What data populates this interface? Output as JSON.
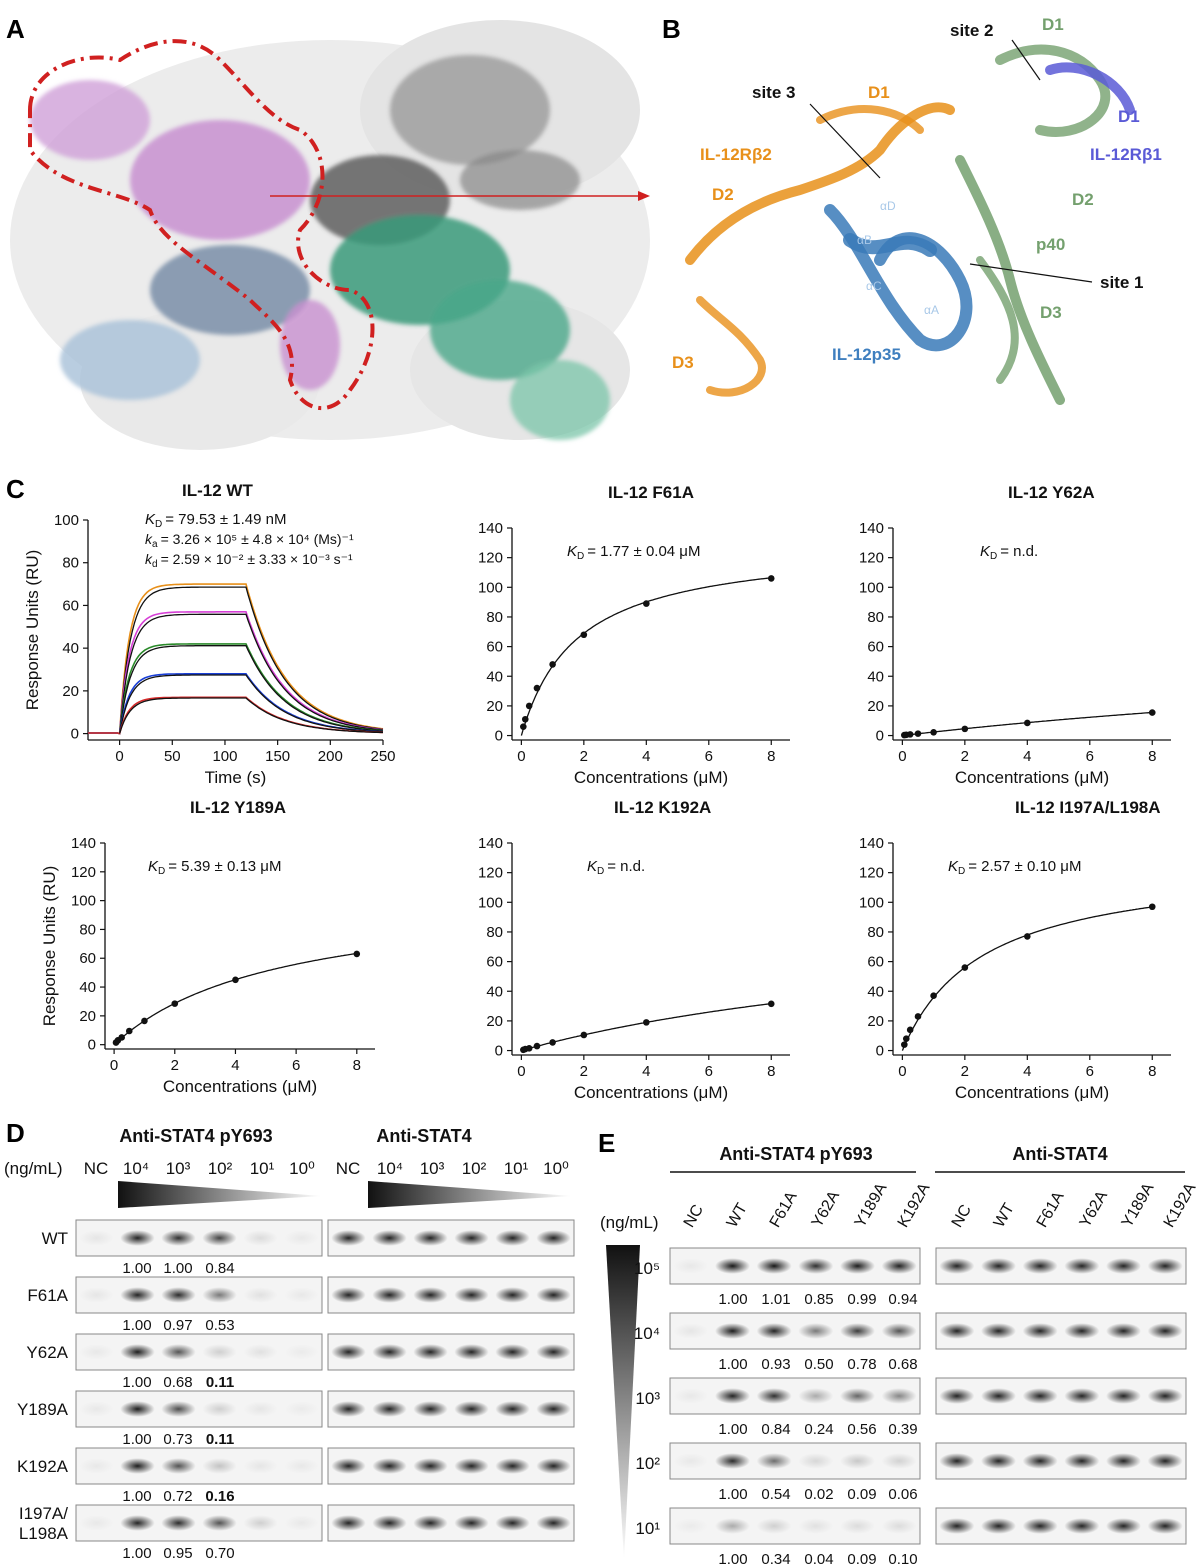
{
  "panel_labels": [
    "A",
    "B",
    "C",
    "D",
    "E"
  ],
  "panelB": {
    "labels": [
      {
        "text": "site 2",
        "c": "#111"
      },
      {
        "text": "D1",
        "c": "#74a06e"
      },
      {
        "text": "site 3",
        "c": "#111"
      },
      {
        "text": "D1",
        "c": "#e8901a"
      },
      {
        "text": "D1",
        "c": "#5a5ad6"
      },
      {
        "text": "IL-12Rβ2",
        "c": "#e8901a"
      },
      {
        "text": "IL-12Rβ1",
        "c": "#5a5ad6"
      },
      {
        "text": "D2",
        "c": "#e8901a"
      },
      {
        "text": "D2",
        "c": "#74a06e"
      },
      {
        "text": "p40",
        "c": "#74a06e"
      },
      {
        "text": "site 1",
        "c": "#111"
      },
      {
        "text": "D3",
        "c": "#74a06e"
      },
      {
        "text": "IL-12p35",
        "c": "#3f7fbf"
      },
      {
        "text": "D3",
        "c": "#e8901a"
      }
    ],
    "helix_labels": [
      "αD",
      "αB",
      "αC",
      "αA"
    ]
  },
  "panelC": {
    "y_axis_label": "Response Units (RU)",
    "x_axis_label_time": "Time (s)",
    "x_axis_label_conc": "Concentrations (μM)",
    "charts": [
      {
        "title": "IL-12 WT",
        "kd": "= 79.53 ± 1.49 nM",
        "ka_line": "= 3.26 × 10⁵ ± 4.8 × 10⁴ (Ms)⁻¹",
        "kdis_line": "= 2.59 × 10⁻² ± 3.33 × 10⁻³ s⁻¹"
      },
      {
        "title": "IL-12 F61A",
        "kd": "= 1.77 ± 0.04 μM"
      },
      {
        "title": "IL-12 Y62A",
        "kd": "= n.d."
      },
      {
        "title": "IL-12 Y189A",
        "kd": "= 5.39 ± 0.13 μM"
      },
      {
        "title": "IL-12 K192A",
        "kd": "= n.d."
      },
      {
        "title": "IL-12 I197A/L198A",
        "kd": "= 2.57 ± 0.10 μM"
      }
    ]
  },
  "chart_data": [
    {
      "type": "line",
      "title": "IL-12 WT",
      "xlabel": "Time (s)",
      "ylabel": "Response Units (RU)",
      "xlim": [
        -30,
        250
      ],
      "ylim": [
        -3,
        100
      ],
      "x_ticks": [
        0,
        50,
        100,
        150,
        200,
        250
      ],
      "y_ticks": [
        0,
        20,
        40,
        60,
        80,
        100
      ],
      "series": [
        {
          "color": "#e8901a",
          "plateau": 70,
          "x": [
            -30,
            0,
            10,
            30,
            60,
            100,
            120,
            150,
            200,
            250
          ],
          "values": [
            0,
            0,
            55,
            68,
            69.5,
            70,
            70,
            35,
            12,
            3
          ]
        },
        {
          "color": "#d63fd6",
          "plateau": 57,
          "x": [
            -30,
            0,
            10,
            30,
            60,
            100,
            120,
            150,
            200,
            250
          ],
          "values": [
            0,
            0,
            40,
            53,
            56,
            57,
            57,
            29,
            10,
            2.5
          ]
        },
        {
          "color": "#2a8a2a",
          "plateau": 42,
          "x": [
            -30,
            0,
            10,
            30,
            60,
            100,
            120,
            150,
            200,
            250
          ],
          "values": [
            0,
            0,
            25,
            37,
            40,
            42,
            42,
            22,
            8,
            2
          ]
        },
        {
          "color": "#1a3fd6",
          "plateau": 28,
          "x": [
            -30,
            0,
            10,
            30,
            60,
            100,
            120,
            150,
            200,
            250
          ],
          "values": [
            0,
            0,
            15,
            23,
            26,
            27,
            28,
            15,
            5,
            1.5
          ]
        },
        {
          "color": "#d62a2a",
          "plateau": 17,
          "x": [
            -30,
            0,
            10,
            30,
            60,
            100,
            120,
            150,
            200,
            250
          ],
          "values": [
            0,
            0,
            8,
            13,
            15,
            16,
            17,
            9,
            3,
            1
          ]
        }
      ]
    },
    {
      "type": "scatter",
      "title": "IL-12 F61A",
      "xlabel": "Concentrations (μM)",
      "ylabel": "",
      "xlim": [
        -0.3,
        8.6
      ],
      "ylim": [
        -3,
        140
      ],
      "x_ticks": [
        0,
        2,
        4,
        6,
        8
      ],
      "y_ticks": [
        0,
        20,
        40,
        60,
        80,
        100,
        120,
        140
      ],
      "x": [
        0.0625,
        0.125,
        0.25,
        0.5,
        1,
        2,
        4,
        8
      ],
      "values": [
        6,
        11,
        20,
        32,
        48,
        68,
        89,
        106
      ],
      "fit": {
        "model": "hyperbola",
        "kd": 1.77,
        "bmax": 130
      }
    },
    {
      "type": "scatter",
      "title": "IL-12 Y62A",
      "xlabel": "Concentrations (μM)",
      "ylabel": "",
      "xlim": [
        -0.3,
        8.6
      ],
      "ylim": [
        -3,
        140
      ],
      "x_ticks": [
        0,
        2,
        4,
        6,
        8
      ],
      "y_ticks": [
        0,
        20,
        40,
        60,
        80,
        100,
        120,
        140
      ],
      "x": [
        0.0625,
        0.125,
        0.25,
        0.5,
        1,
        2,
        4,
        8
      ],
      "values": [
        0.3,
        0.5,
        0.8,
        1.3,
        2.2,
        4.5,
        8.5,
        15.5
      ],
      "fit": {
        "model": "hyperbola",
        "kd": 30,
        "bmax": 74
      }
    },
    {
      "type": "scatter",
      "title": "IL-12 Y189A",
      "xlabel": "Concentrations (μM)",
      "ylabel": "Response Units (RU)",
      "xlim": [
        -0.3,
        8.6
      ],
      "ylim": [
        -3,
        140
      ],
      "x_ticks": [
        0,
        2,
        4,
        6,
        8
      ],
      "y_ticks": [
        0,
        20,
        40,
        60,
        80,
        100,
        120,
        140
      ],
      "x": [
        0.0625,
        0.125,
        0.25,
        0.5,
        1,
        2,
        4,
        8
      ],
      "values": [
        1.5,
        3,
        5,
        9.5,
        16.5,
        28.5,
        45,
        63
      ],
      "fit": {
        "model": "hyperbola",
        "kd": 5.39,
        "bmax": 106
      }
    },
    {
      "type": "scatter",
      "title": "IL-12 K192A",
      "xlabel": "Concentrations (μM)",
      "ylabel": "",
      "xlim": [
        -0.3,
        8.6
      ],
      "ylim": [
        -3,
        140
      ],
      "x_ticks": [
        0,
        2,
        4,
        6,
        8
      ],
      "y_ticks": [
        0,
        20,
        40,
        60,
        80,
        100,
        120,
        140
      ],
      "x": [
        0.0625,
        0.125,
        0.25,
        0.5,
        1,
        2,
        4,
        8
      ],
      "values": [
        0.5,
        1,
        1.5,
        3,
        5.5,
        10.5,
        19,
        31.5
      ],
      "fit": {
        "model": "hyperbola",
        "kd": 16,
        "bmax": 95
      }
    },
    {
      "type": "scatter",
      "title": "IL-12 I197A/L198A",
      "xlabel": "Concentrations (μM)",
      "ylabel": "",
      "xlim": [
        -0.3,
        8.6
      ],
      "ylim": [
        -3,
        140
      ],
      "x_ticks": [
        0,
        2,
        4,
        6,
        8
      ],
      "y_ticks": [
        0,
        20,
        40,
        60,
        80,
        100,
        120,
        140
      ],
      "x": [
        0.0625,
        0.125,
        0.25,
        0.5,
        1,
        2,
        4,
        8
      ],
      "values": [
        4,
        8,
        14,
        23,
        37,
        56,
        77,
        97
      ],
      "fit": {
        "model": "hyperbola",
        "kd": 2.57,
        "bmax": 128
      }
    }
  ],
  "panelD": {
    "header_left": "Anti-STAT4 pY693",
    "header_right": "Anti-STAT4",
    "unit": "(ng/mL)",
    "lanes": [
      "NC",
      "10⁴",
      "10³",
      "10²",
      "10¹",
      "10⁰"
    ],
    "rows": [
      {
        "label": "WT",
        "vals": [
          "1.00",
          "1.00",
          "0.84"
        ],
        "bold": [
          false,
          false,
          false
        ],
        "bands": [
          0.06,
          0.85,
          0.8,
          0.72,
          0.1,
          0.05
        ]
      },
      {
        "label": "F61A",
        "vals": [
          "1.00",
          "0.97",
          "0.53"
        ],
        "bold": [
          false,
          false,
          false
        ],
        "bands": [
          0.06,
          0.85,
          0.82,
          0.5,
          0.08,
          0.05
        ]
      },
      {
        "label": "Y62A",
        "vals": [
          "1.00",
          "0.68",
          "0.11"
        ],
        "bold": [
          false,
          false,
          true
        ],
        "bands": [
          0.05,
          0.88,
          0.65,
          0.15,
          0.08,
          0.04
        ]
      },
      {
        "label": "Y189A",
        "vals": [
          "1.00",
          "0.73",
          "0.11"
        ],
        "bold": [
          false,
          false,
          true
        ],
        "bands": [
          0.05,
          0.88,
          0.68,
          0.15,
          0.06,
          0.04
        ]
      },
      {
        "label": "K192A",
        "vals": [
          "1.00",
          "0.72",
          "0.16"
        ],
        "bold": [
          false,
          false,
          true
        ],
        "bands": [
          0.05,
          0.88,
          0.66,
          0.2,
          0.06,
          0.05
        ]
      },
      {
        "label": "I197A/\nL198A",
        "vals": [
          "1.00",
          "0.95",
          "0.70"
        ],
        "bold": [
          false,
          false,
          false
        ],
        "bands": [
          0.05,
          0.85,
          0.82,
          0.66,
          0.15,
          0.05
        ]
      }
    ]
  },
  "panelE": {
    "header_left": "Anti-STAT4 pY693",
    "header_right": "Anti-STAT4",
    "unit": "(ng/mL)",
    "lanes": [
      "NC",
      "WT",
      "F61A",
      "Y62A",
      "Y189A",
      "K192A"
    ],
    "rows": [
      {
        "label": "10⁵",
        "vals": [
          "1.00",
          "1.01",
          "0.85",
          "0.99",
          "0.94"
        ],
        "bands": [
          0.05,
          0.9,
          0.9,
          0.8,
          0.88,
          0.86
        ]
      },
      {
        "label": "10⁴",
        "vals": [
          "1.00",
          "0.93",
          "0.50",
          "0.78",
          "0.68"
        ],
        "bands": [
          0.06,
          0.88,
          0.85,
          0.5,
          0.75,
          0.65
        ]
      },
      {
        "label": "10³",
        "vals": [
          "1.00",
          "0.84",
          "0.24",
          "0.56",
          "0.39"
        ],
        "bands": [
          0.05,
          0.85,
          0.8,
          0.3,
          0.58,
          0.45
        ]
      },
      {
        "label": "10²",
        "vals": [
          "1.00",
          "0.54",
          "0.02",
          "0.09",
          "0.06"
        ],
        "bands": [
          0.05,
          0.82,
          0.55,
          0.12,
          0.18,
          0.14
        ]
      },
      {
        "label": "10¹",
        "vals": [
          "1.00",
          "0.34",
          "0.04",
          "0.09",
          "0.10"
        ],
        "bands": [
          0.04,
          0.3,
          0.15,
          0.08,
          0.1,
          0.1
        ]
      }
    ]
  }
}
